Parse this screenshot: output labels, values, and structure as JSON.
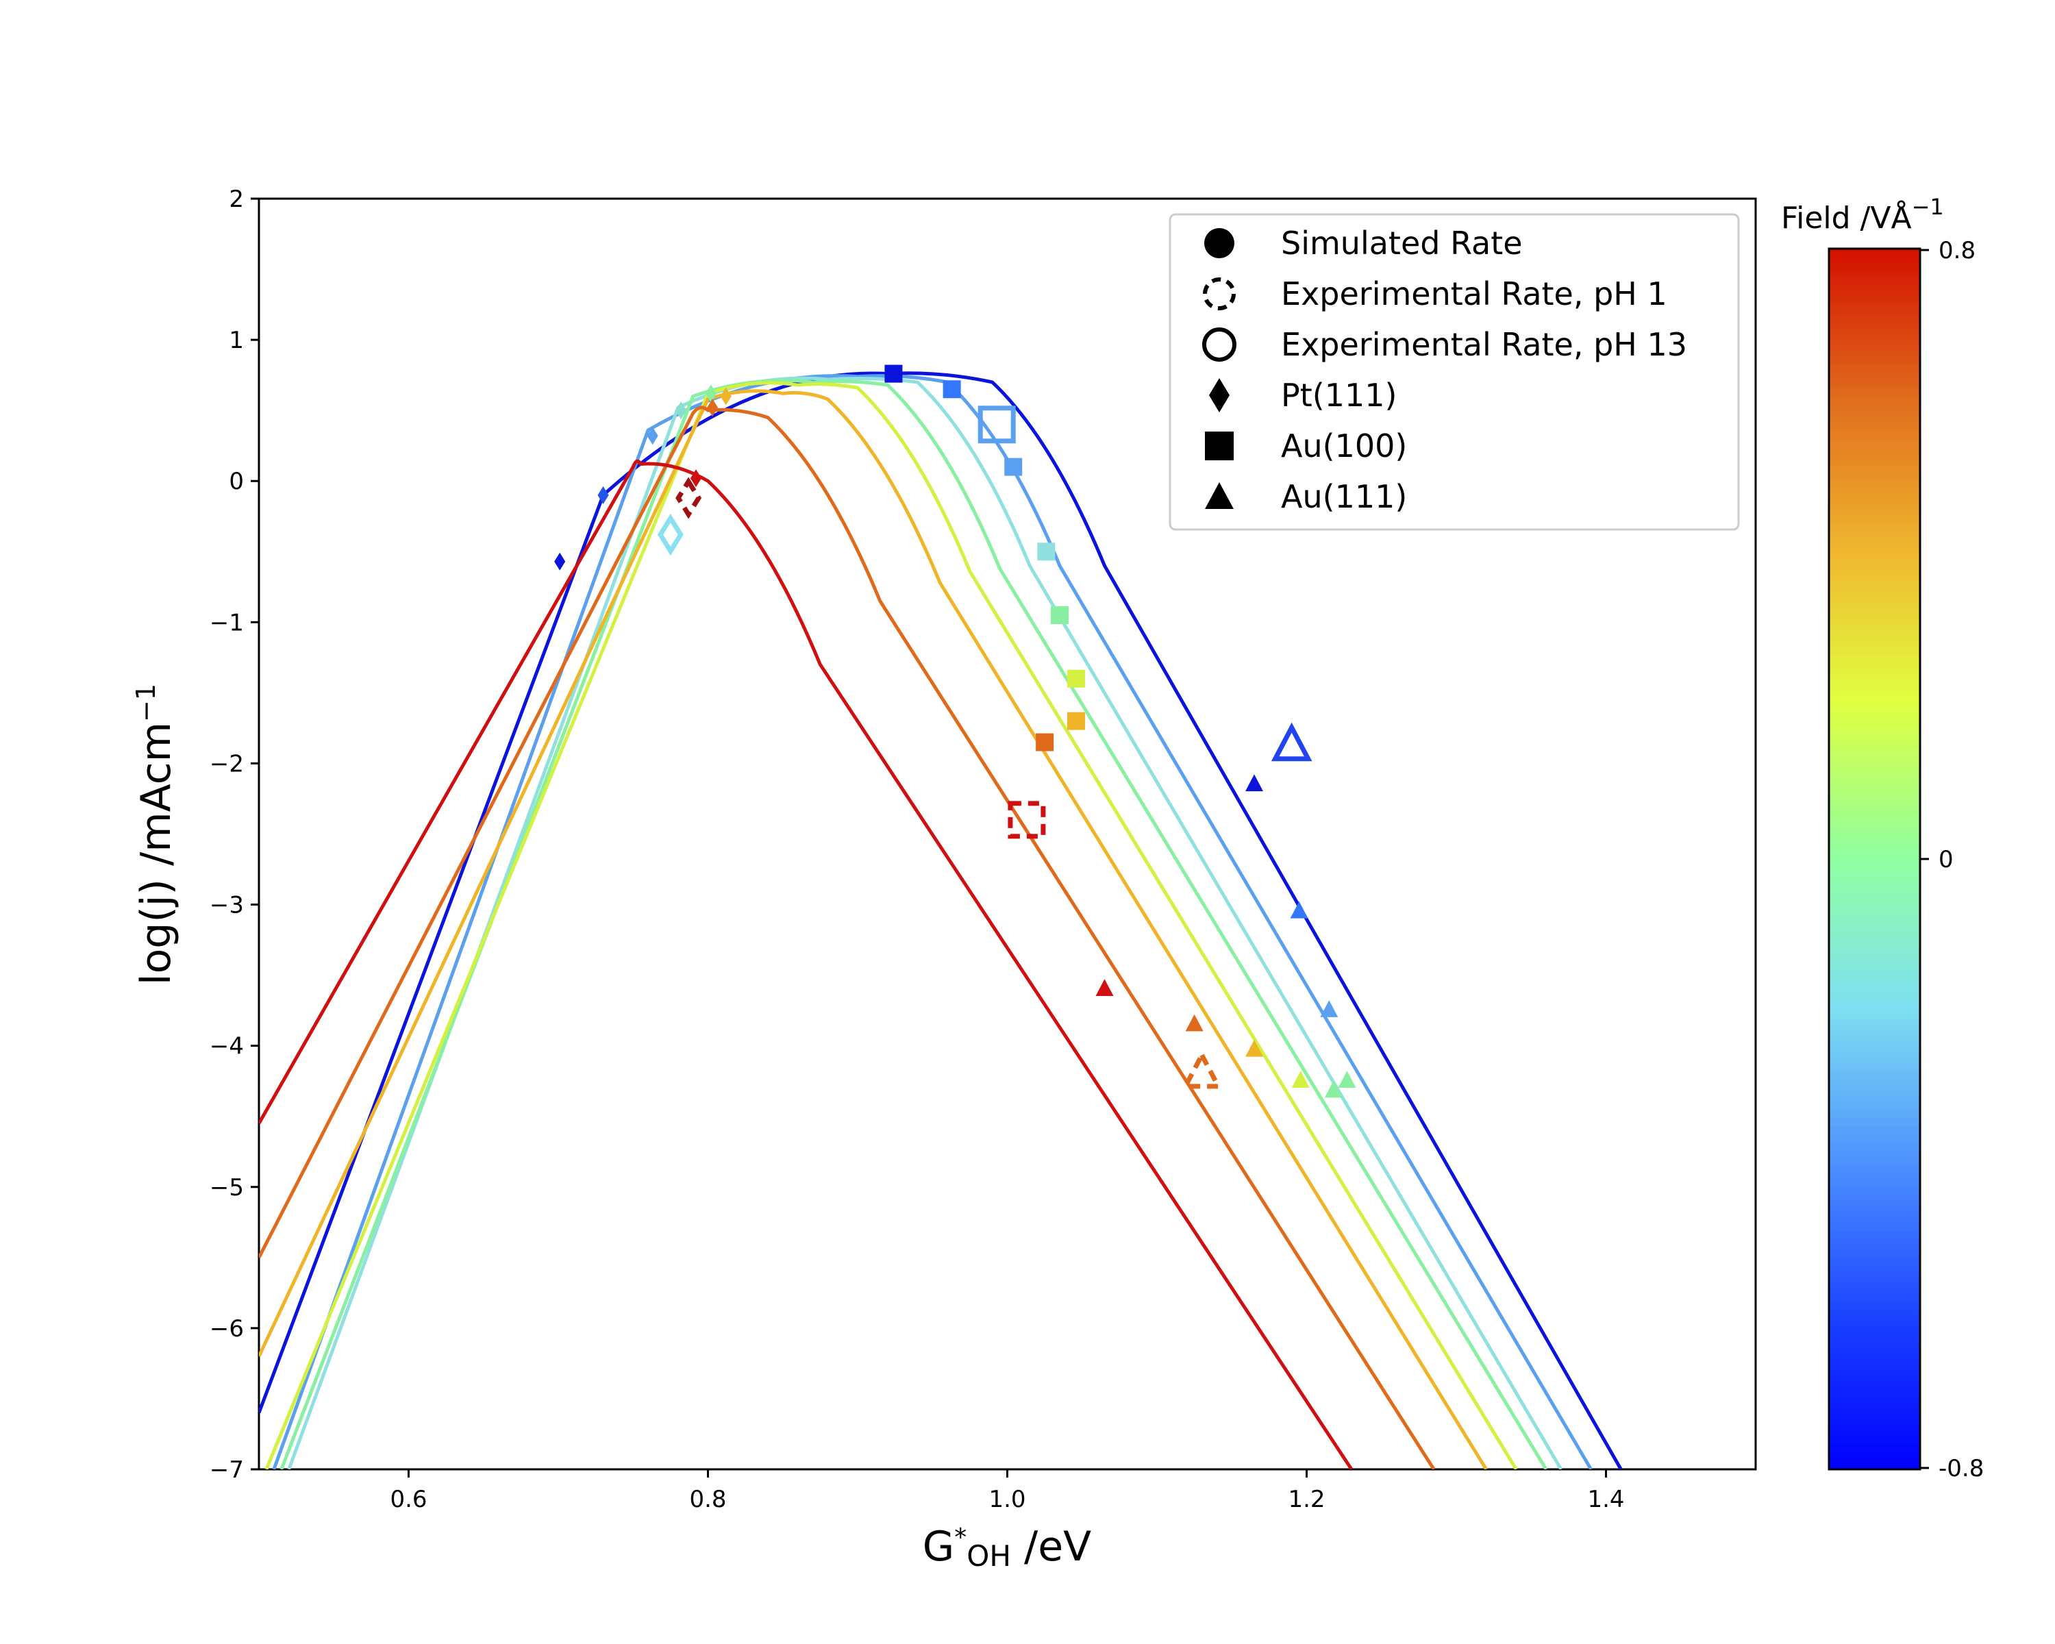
{
  "chart_data": {
    "type": "line",
    "title": "",
    "xlabel": {
      "main": "G",
      "sup": "*",
      "sub": "OH",
      "unit": " /eV"
    },
    "ylabel": {
      "main": "log(j) /mAcm",
      "sup": "−1"
    },
    "xlim": [
      0.5,
      1.5
    ],
    "ylim": [
      -7,
      2
    ],
    "x_ticks": [
      0.6,
      0.8,
      1.0,
      1.2,
      1.4
    ],
    "x_tick_labels": [
      "0.6",
      "0.8",
      "1.0",
      "1.2",
      "1.4"
    ],
    "y_ticks": [
      -7,
      -6,
      -5,
      -4,
      -3,
      -2,
      -1,
      0,
      1,
      2
    ],
    "y_tick_labels": [
      "−7",
      "−6",
      "−5",
      "−4",
      "−3",
      "−2",
      "−1",
      "0",
      "1",
      "2"
    ],
    "grid": false,
    "legend_position": "top-right",
    "legend": [
      {
        "label": "Simulated Rate",
        "marker": "circle",
        "style": "filled"
      },
      {
        "label": "Experimental Rate, pH 1",
        "marker": "circle",
        "style": "dashed"
      },
      {
        "label": "Experimental Rate, pH 13",
        "marker": "circle",
        "style": "open"
      },
      {
        "label": "Pt(111)",
        "marker": "diamond",
        "style": "filled"
      },
      {
        "label": "Au(100)",
        "marker": "square",
        "style": "filled"
      },
      {
        "label": "Au(111)",
        "marker": "triangle",
        "style": "filled"
      }
    ],
    "colorbar": {
      "title": "Field /VÅ",
      "title_sup": "−1",
      "min": -0.8,
      "max": 0.8,
      "tick_labels": {
        "top": "0.8",
        "middle": "0",
        "bottom": "-0.8"
      },
      "colors": [
        "#0000ff",
        "#3377ff",
        "#55aaff",
        "#88e0f0",
        "#99ffaa",
        "#ccff55",
        "#eeee33",
        "#f0b030",
        "#e07020",
        "#d41000"
      ]
    },
    "series": [
      {
        "name": "field -0.8",
        "color": "#0a14dc",
        "peak_x": 0.92,
        "peak_y": 0.76,
        "left_start": [
          0.5,
          -6.6
        ],
        "left_end": [
          0.73,
          -0.1
        ],
        "right_start": [
          0.99,
          0.7
        ],
        "right_end": [
          1.41,
          -7
        ]
      },
      {
        "name": "field -0.6",
        "color": "#5aa0ee",
        "peak_x": 0.9,
        "peak_y": 0.74,
        "left_start": [
          0.51,
          -7
        ],
        "left_end": [
          0.76,
          0.36
        ],
        "right_start": [
          0.96,
          0.7
        ],
        "right_end": [
          1.39,
          -7
        ]
      },
      {
        "name": "field -0.4",
        "color": "#90e0e0",
        "peak_x": 0.88,
        "peak_y": 0.72,
        "left_start": [
          0.52,
          -7
        ],
        "left_end": [
          0.78,
          0.52
        ],
        "right_start": [
          0.94,
          0.7
        ],
        "right_end": [
          1.37,
          -7
        ]
      },
      {
        "name": "field -0.2",
        "color": "#88f0a0",
        "peak_x": 0.87,
        "peak_y": 0.7,
        "left_start": [
          0.515,
          -7
        ],
        "left_end": [
          0.79,
          0.6
        ],
        "right_start": [
          0.92,
          0.68
        ],
        "right_end": [
          1.36,
          -7
        ]
      },
      {
        "name": "field 0.2",
        "color": "#d4f040",
        "peak_x": 0.86,
        "peak_y": 0.68,
        "left_start": [
          0.505,
          -7
        ],
        "left_end": [
          0.8,
          0.62
        ],
        "right_start": [
          0.9,
          0.66
        ],
        "right_end": [
          1.34,
          -7
        ]
      },
      {
        "name": "field 0.4",
        "color": "#f0b428",
        "peak_x": 0.85,
        "peak_y": 0.62,
        "left_start": [
          0.5,
          -6.2
        ],
        "left_end": [
          0.8,
          0.58
        ],
        "right_start": [
          0.88,
          0.58
        ],
        "right_end": [
          1.32,
          -7
        ]
      },
      {
        "name": "field 0.6",
        "color": "#e06a1c",
        "peak_x": 0.8,
        "peak_y": 0.5,
        "left_start": [
          0.5,
          -5.5
        ],
        "left_end": [
          0.79,
          0.48
        ],
        "right_start": [
          0.84,
          0.45
        ],
        "right_end": [
          1.285,
          -7
        ]
      },
      {
        "name": "field 0.8",
        "color": "#d01010",
        "peak_x": 0.755,
        "peak_y": 0.12,
        "left_start": [
          0.5,
          -4.55
        ],
        "left_end": [
          0.75,
          0.1
        ],
        "right_start": [
          0.8,
          0.0
        ],
        "right_end": [
          1.23,
          -7
        ]
      }
    ],
    "simulated_points": [
      {
        "marker": "diamond",
        "x": 0.701,
        "y": -0.57,
        "color": "#0a14dc"
      },
      {
        "marker": "diamond",
        "x": 0.73,
        "y": -0.1,
        "color": "#2255ee"
      },
      {
        "marker": "diamond",
        "x": 0.763,
        "y": 0.32,
        "color": "#5aa0ee"
      },
      {
        "marker": "diamond",
        "x": 0.782,
        "y": 0.5,
        "color": "#88e0d0"
      },
      {
        "marker": "diamond",
        "x": 0.802,
        "y": 0.62,
        "color": "#88f0a0"
      },
      {
        "marker": "diamond",
        "x": 0.812,
        "y": 0.6,
        "color": "#f0b428"
      },
      {
        "marker": "diamond",
        "x": 0.803,
        "y": 0.52,
        "color": "#e06a1c"
      },
      {
        "marker": "diamond",
        "x": 0.792,
        "y": 0.02,
        "color": "#d01010"
      },
      {
        "marker": "square",
        "x": 0.924,
        "y": 0.76,
        "color": "#0a14dc"
      },
      {
        "marker": "square",
        "x": 0.963,
        "y": 0.65,
        "color": "#3377ff"
      },
      {
        "marker": "square",
        "x": 1.004,
        "y": 0.1,
        "color": "#5aa0ee"
      },
      {
        "marker": "square",
        "x": 1.026,
        "y": -0.5,
        "color": "#90e0e0"
      },
      {
        "marker": "square",
        "x": 1.035,
        "y": -0.95,
        "color": "#88f0a0"
      },
      {
        "marker": "square",
        "x": 1.046,
        "y": -1.4,
        "color": "#d4f040"
      },
      {
        "marker": "square",
        "x": 1.046,
        "y": -1.7,
        "color": "#f0b428"
      },
      {
        "marker": "square",
        "x": 1.025,
        "y": -1.85,
        "color": "#e06a1c"
      },
      {
        "marker": "triangle",
        "x": 1.165,
        "y": -2.15,
        "color": "#0a14dc"
      },
      {
        "marker": "triangle",
        "x": 1.195,
        "y": -3.05,
        "color": "#3377ff"
      },
      {
        "marker": "triangle",
        "x": 1.215,
        "y": -3.75,
        "color": "#5aa0ee"
      },
      {
        "marker": "triangle",
        "x": 1.227,
        "y": -4.25,
        "color": "#88f0a0"
      },
      {
        "marker": "triangle",
        "x": 1.218,
        "y": -4.32,
        "color": "#88f0a0"
      },
      {
        "marker": "triangle",
        "x": 1.196,
        "y": -4.25,
        "color": "#d4f040"
      },
      {
        "marker": "triangle",
        "x": 1.165,
        "y": -4.03,
        "color": "#f0b428"
      },
      {
        "marker": "triangle",
        "x": 1.125,
        "y": -3.85,
        "color": "#e06a1c"
      },
      {
        "marker": "triangle",
        "x": 1.065,
        "y": -3.6,
        "color": "#d01010"
      }
    ],
    "experimental_points": [
      {
        "marker": "diamond",
        "style": "open",
        "x": 0.775,
        "y": -0.38,
        "color": "#88e0f0"
      },
      {
        "marker": "diamond",
        "style": "dashed",
        "x": 0.787,
        "y": -0.12,
        "color": "#a01010"
      },
      {
        "marker": "square",
        "style": "open",
        "x": 0.993,
        "y": 0.4,
        "color": "#5aa0ee"
      },
      {
        "marker": "square",
        "style": "dashed",
        "x": 1.013,
        "y": -2.4,
        "color": "#d01010"
      },
      {
        "marker": "triangle",
        "style": "open",
        "x": 1.19,
        "y": -1.88,
        "color": "#2244ee"
      },
      {
        "marker": "triangle",
        "style": "dashed",
        "x": 1.13,
        "y": -4.2,
        "color": "#e06a1c"
      }
    ]
  }
}
